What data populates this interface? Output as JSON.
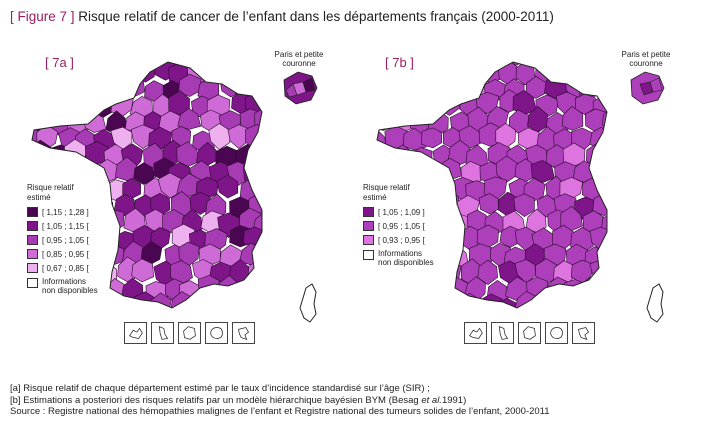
{
  "figure": {
    "tag": "[ Figure 7 ]",
    "title": "Risque relatif de cancer de l’enfant dans les départements français (2000-2011)"
  },
  "panels": [
    {
      "label": "[ 7a ]",
      "inset_caption_line1": "Paris et petite",
      "inset_caption_line2": "couronne",
      "legend_title_line1": "Risque relatif",
      "legend_title_line2": "estimé",
      "classes": [
        {
          "label": "[ 1,15 ; 1,28 ]",
          "color": "#4a0650"
        },
        {
          "label": "[ 1,05 ; 1,15 [",
          "color": "#7e1589"
        },
        {
          "label": "[ 0,95 ; 1,05 [",
          "color": "#a73bb4"
        },
        {
          "label": "[ 0,85 ; 0,95 [",
          "color": "#cf6bd6"
        },
        {
          "label": "[ 0,67 ; 0,85 [",
          "color": "#eeb0ef"
        }
      ],
      "na_line1": "Informations",
      "na_line2": "non disponibles"
    },
    {
      "label": "[ 7b ]",
      "inset_caption_line1": "Paris et petite",
      "inset_caption_line2": "couronne",
      "legend_title_line1": "Risque relatif",
      "legend_title_line2": "estimé",
      "classes": [
        {
          "label": "[ 1,05 ; 1,09 ]",
          "color": "#7e1589"
        },
        {
          "label": "[ 0,95 ; 1,05 [",
          "color": "#ae3fbb"
        },
        {
          "label": "[ 0,93 ; 0,95 [",
          "color": "#dd74e0"
        }
      ],
      "na_line1": "Informations",
      "na_line2": "non disponibles"
    }
  ],
  "notes": {
    "line1": "[a] Risque relatif de chaque département estimé par le taux d’incidence standardisé sur l’âge (SIR) ;",
    "line2_prefix": "[b] Estimations a posteriori des risques relatifs par un modèle hiérarchique bayésien BYM (Besag ",
    "line2_italic": "et al.",
    "line2_suffix": "1991)",
    "line3": "Source : Registre national des hémopathies malignes de l’enfant et Registre national des tumeurs solides de l’enfant, 2000-2011"
  }
}
